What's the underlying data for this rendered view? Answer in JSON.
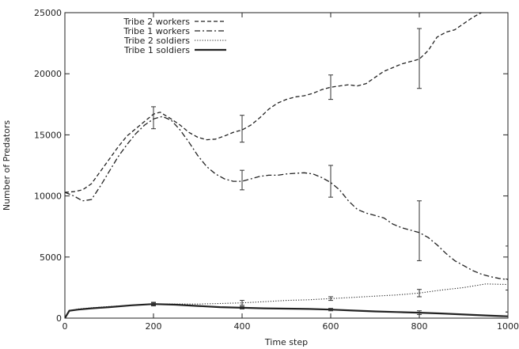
{
  "chart_data": {
    "type": "line",
    "xlabel": "Time step",
    "ylabel": "Number of Predators",
    "xlim": [
      0,
      1000
    ],
    "ylim": [
      0,
      25000
    ],
    "xticks": [
      0,
      200,
      400,
      600,
      800,
      1000
    ],
    "yticks": [
      0,
      5000,
      10000,
      15000,
      20000,
      25000
    ],
    "grid": false,
    "legend_position": "top-left",
    "series": [
      {
        "name": "Tribe 2 workers",
        "style": "dashed",
        "color": "#222222",
        "points": [
          [
            0,
            10300
          ],
          [
            20,
            10350
          ],
          [
            40,
            10500
          ],
          [
            60,
            11000
          ],
          [
            80,
            12000
          ],
          [
            100,
            13000
          ],
          [
            120,
            14000
          ],
          [
            140,
            14900
          ],
          [
            160,
            15500
          ],
          [
            180,
            16100
          ],
          [
            200,
            16700
          ],
          [
            215,
            16850
          ],
          [
            240,
            16300
          ],
          [
            260,
            15800
          ],
          [
            280,
            15200
          ],
          [
            300,
            14800
          ],
          [
            320,
            14600
          ],
          [
            340,
            14650
          ],
          [
            360,
            14900
          ],
          [
            380,
            15200
          ],
          [
            400,
            15400
          ],
          [
            420,
            15800
          ],
          [
            440,
            16400
          ],
          [
            460,
            17100
          ],
          [
            480,
            17600
          ],
          [
            500,
            17900
          ],
          [
            520,
            18100
          ],
          [
            540,
            18200
          ],
          [
            560,
            18400
          ],
          [
            580,
            18700
          ],
          [
            600,
            18900
          ],
          [
            620,
            19000
          ],
          [
            640,
            19100
          ],
          [
            660,
            19000
          ],
          [
            680,
            19200
          ],
          [
            700,
            19700
          ],
          [
            720,
            20200
          ],
          [
            740,
            20500
          ],
          [
            760,
            20800
          ],
          [
            780,
            21000
          ],
          [
            800,
            21200
          ],
          [
            820,
            21900
          ],
          [
            840,
            23000
          ],
          [
            860,
            23400
          ],
          [
            880,
            23600
          ],
          [
            900,
            24100
          ],
          [
            920,
            24600
          ],
          [
            940,
            25000
          ],
          [
            955,
            25200
          ]
        ],
        "error_bars": [
          {
            "x": 200,
            "low": 15500,
            "high": 17300
          },
          {
            "x": 400,
            "low": 14400,
            "high": 16600
          },
          {
            "x": 600,
            "low": 17900,
            "high": 19900
          },
          {
            "x": 800,
            "low": 18800,
            "high": 23700
          }
        ]
      },
      {
        "name": "Tribe 1 workers",
        "style": "dashdot",
        "color": "#222222",
        "points": [
          [
            0,
            10300
          ],
          [
            20,
            10000
          ],
          [
            40,
            9600
          ],
          [
            60,
            9700
          ],
          [
            80,
            10800
          ],
          [
            100,
            12000
          ],
          [
            120,
            13200
          ],
          [
            140,
            14200
          ],
          [
            160,
            15100
          ],
          [
            180,
            15800
          ],
          [
            200,
            16300
          ],
          [
            220,
            16500
          ],
          [
            240,
            16200
          ],
          [
            260,
            15400
          ],
          [
            280,
            14400
          ],
          [
            300,
            13300
          ],
          [
            320,
            12400
          ],
          [
            340,
            11800
          ],
          [
            360,
            11400
          ],
          [
            380,
            11200
          ],
          [
            400,
            11200
          ],
          [
            420,
            11400
          ],
          [
            440,
            11600
          ],
          [
            460,
            11700
          ],
          [
            480,
            11700
          ],
          [
            500,
            11800
          ],
          [
            520,
            11850
          ],
          [
            540,
            11900
          ],
          [
            560,
            11800
          ],
          [
            580,
            11500
          ],
          [
            600,
            11100
          ],
          [
            620,
            10500
          ],
          [
            640,
            9600
          ],
          [
            660,
            8900
          ],
          [
            680,
            8600
          ],
          [
            700,
            8400
          ],
          [
            720,
            8200
          ],
          [
            740,
            7700
          ],
          [
            760,
            7400
          ],
          [
            780,
            7200
          ],
          [
            800,
            7000
          ],
          [
            820,
            6600
          ],
          [
            840,
            6000
          ],
          [
            860,
            5300
          ],
          [
            880,
            4700
          ],
          [
            900,
            4300
          ],
          [
            920,
            3900
          ],
          [
            940,
            3600
          ],
          [
            960,
            3400
          ],
          [
            980,
            3250
          ],
          [
            1000,
            3150
          ]
        ],
        "error_bars": [
          {
            "x": 400,
            "low": 10500,
            "high": 12100
          },
          {
            "x": 600,
            "low": 9900,
            "high": 12500
          },
          {
            "x": 800,
            "low": 4700,
            "high": 9600
          },
          {
            "x": 1000,
            "low": 500,
            "high": 5900
          }
        ]
      },
      {
        "name": "Tribe 2 soldiers",
        "style": "dotted",
        "color": "#222222",
        "points": [
          [
            0,
            0
          ],
          [
            10,
            600
          ],
          [
            30,
            750
          ],
          [
            60,
            850
          ],
          [
            100,
            950
          ],
          [
            150,
            1050
          ],
          [
            200,
            1150
          ],
          [
            250,
            1150
          ],
          [
            300,
            1150
          ],
          [
            350,
            1200
          ],
          [
            400,
            1250
          ],
          [
            450,
            1350
          ],
          [
            500,
            1450
          ],
          [
            550,
            1500
          ],
          [
            600,
            1600
          ],
          [
            650,
            1700
          ],
          [
            700,
            1800
          ],
          [
            750,
            1900
          ],
          [
            800,
            2050
          ],
          [
            850,
            2300
          ],
          [
            900,
            2500
          ],
          [
            950,
            2800
          ],
          [
            1000,
            2750
          ]
        ],
        "error_bars": [
          {
            "x": 200,
            "low": 1000,
            "high": 1300
          },
          {
            "x": 400,
            "low": 1050,
            "high": 1450
          },
          {
            "x": 600,
            "low": 1450,
            "high": 1750
          },
          {
            "x": 800,
            "low": 1750,
            "high": 2350
          },
          {
            "x": 1000,
            "low": 2300,
            "high": 3200
          }
        ]
      },
      {
        "name": "Tribe 1 soldiers",
        "style": "solid",
        "color": "#222222",
        "points": [
          [
            0,
            0
          ],
          [
            10,
            600
          ],
          [
            30,
            700
          ],
          [
            60,
            800
          ],
          [
            100,
            900
          ],
          [
            150,
            1050
          ],
          [
            200,
            1150
          ],
          [
            250,
            1100
          ],
          [
            300,
            1000
          ],
          [
            350,
            900
          ],
          [
            400,
            850
          ],
          [
            450,
            800
          ],
          [
            500,
            780
          ],
          [
            550,
            750
          ],
          [
            600,
            700
          ],
          [
            650,
            620
          ],
          [
            700,
            550
          ],
          [
            750,
            500
          ],
          [
            800,
            450
          ],
          [
            850,
            380
          ],
          [
            900,
            300
          ],
          [
            950,
            220
          ],
          [
            1000,
            150
          ]
        ],
        "error_bars": [
          {
            "x": 200,
            "low": 1050,
            "high": 1250
          },
          {
            "x": 400,
            "low": 750,
            "high": 950
          },
          {
            "x": 600,
            "low": 600,
            "high": 800
          },
          {
            "x": 800,
            "low": 300,
            "high": 600
          },
          {
            "x": 1000,
            "low": 0,
            "high": 500
          }
        ]
      }
    ]
  }
}
